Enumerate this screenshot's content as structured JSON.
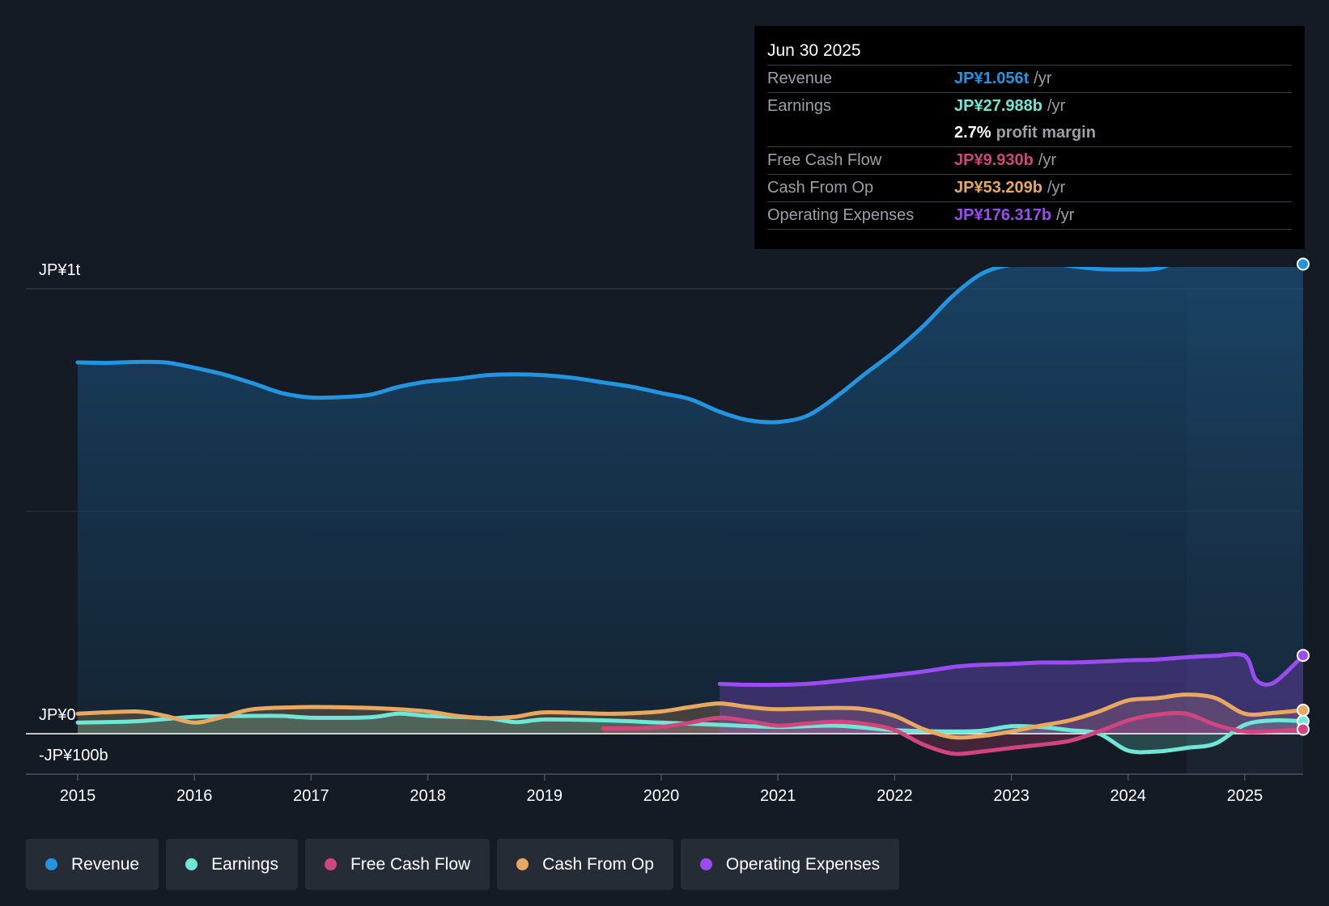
{
  "tooltip": {
    "date": "Jun 30 2025",
    "rows": {
      "revenue": {
        "label": "Revenue",
        "value": "JP¥1.056t",
        "unit": "/yr",
        "color": "#2394df"
      },
      "earnings": {
        "label": "Earnings",
        "value": "JP¥27.988b",
        "unit": "/yr",
        "color": "#6ee7d7"
      },
      "margin": {
        "value": "2.7%",
        "text": "profit margin"
      },
      "fcf": {
        "label": "Free Cash Flow",
        "value": "JP¥9.930b",
        "unit": "/yr",
        "color": "#d1457e"
      },
      "cfo": {
        "label": "Cash From Op",
        "value": "JP¥53.209b",
        "unit": "/yr",
        "color": "#e8a860"
      },
      "opex": {
        "label": "Operating Expenses",
        "value": "JP¥176.317b",
        "unit": "/yr",
        "color": "#9b4cf0"
      }
    }
  },
  "legend": [
    {
      "label": "Revenue",
      "color": "#2394df"
    },
    {
      "label": "Earnings",
      "color": "#6ee7d7"
    },
    {
      "label": "Free Cash Flow",
      "color": "#d1457e"
    },
    {
      "label": "Cash From Op",
      "color": "#e8a860"
    },
    {
      "label": "Operating Expenses",
      "color": "#9b4cf0"
    }
  ],
  "chart_data": {
    "type": "area",
    "title": "",
    "xlabel": "",
    "ylabel": "",
    "unit": "JP¥ billions",
    "y_axis_labels": {
      "top": "JP¥1t",
      "zero": "JP¥0",
      "bottom": "-JP¥100b"
    },
    "ylim": [
      -100,
      1100
    ],
    "xlim": [
      2015.0,
      2025.5
    ],
    "x_ticks": [
      "2015",
      "2016",
      "2017",
      "2018",
      "2019",
      "2020",
      "2021",
      "2022",
      "2023",
      "2024",
      "2025"
    ],
    "highlight_from": 2024.5,
    "series": [
      {
        "name": "Revenue",
        "color": "#2394df",
        "filled": true,
        "x": [
          2015.0,
          2015.25,
          2015.5,
          2015.75,
          2016.0,
          2016.25,
          2016.5,
          2016.75,
          2017.0,
          2017.25,
          2017.5,
          2017.75,
          2018.0,
          2018.25,
          2018.5,
          2018.75,
          2019.0,
          2019.25,
          2019.5,
          2019.75,
          2020.0,
          2020.25,
          2020.5,
          2020.75,
          2021.0,
          2021.25,
          2021.5,
          2021.75,
          2022.0,
          2022.25,
          2022.5,
          2022.75,
          2023.0,
          2023.25,
          2023.5,
          2023.75,
          2024.0,
          2024.25,
          2024.5,
          2024.75,
          2025.0,
          2025.25,
          2025.5
        ],
        "y": [
          835,
          834,
          836,
          835,
          823,
          808,
          788,
          766,
          756,
          757,
          762,
          780,
          792,
          798,
          806,
          808,
          806,
          800,
          790,
          780,
          766,
          752,
          724,
          705,
          701,
          715,
          758,
          810,
          860,
          918,
          985,
          1035,
          1055,
          1060,
          1052,
          1045,
          1044,
          1046,
          1067,
          1070,
          1074,
          1080,
          1056
        ]
      },
      {
        "name": "Earnings",
        "color": "#6ee7d7",
        "filled": true,
        "x": [
          2015.0,
          2015.5,
          2016.0,
          2016.5,
          2016.75,
          2017.0,
          2017.5,
          2017.75,
          2018.0,
          2018.5,
          2018.75,
          2019.0,
          2019.5,
          2020.0,
          2020.5,
          2021.0,
          2021.5,
          2022.0,
          2022.5,
          2022.75,
          2023.0,
          2023.25,
          2023.5,
          2023.75,
          2024.0,
          2024.25,
          2024.5,
          2024.75,
          2025.0,
          2025.25,
          2025.5
        ],
        "y": [
          25,
          28,
          38,
          40,
          40,
          36,
          37,
          45,
          40,
          35,
          26,
          32,
          30,
          25,
          20,
          15,
          18,
          8,
          5,
          7,
          17,
          15,
          8,
          0,
          -38,
          -40,
          -32,
          -22,
          20,
          30,
          28
        ]
      },
      {
        "name": "Free Cash Flow",
        "color": "#d1457e",
        "filled": true,
        "x": [
          2019.5,
          2019.75,
          2020.0,
          2020.25,
          2020.5,
          2020.75,
          2021.0,
          2021.25,
          2021.5,
          2021.75,
          2022.0,
          2022.25,
          2022.5,
          2022.75,
          2023.0,
          2023.25,
          2023.5,
          2023.75,
          2024.0,
          2024.25,
          2024.5,
          2024.75,
          2025.0,
          2025.25,
          2025.5
        ],
        "y": [
          12,
          12,
          15,
          25,
          36,
          28,
          18,
          23,
          27,
          22,
          8,
          -25,
          -45,
          -40,
          -32,
          -25,
          -16,
          5,
          30,
          43,
          45,
          20,
          5,
          6,
          10
        ]
      },
      {
        "name": "Cash From Op",
        "color": "#e8a860",
        "filled": true,
        "x": [
          2015.0,
          2015.5,
          2015.75,
          2016.0,
          2016.25,
          2016.5,
          2017.0,
          2017.5,
          2017.75,
          2018.0,
          2018.25,
          2018.5,
          2018.75,
          2019.0,
          2019.5,
          2019.75,
          2020.0,
          2020.25,
          2020.5,
          2020.75,
          2021.0,
          2021.5,
          2021.75,
          2022.0,
          2022.25,
          2022.5,
          2022.75,
          2023.0,
          2023.25,
          2023.5,
          2023.75,
          2024.0,
          2024.25,
          2024.5,
          2024.75,
          2025.0,
          2025.25,
          2025.5
        ],
        "y": [
          45,
          50,
          40,
          25,
          38,
          55,
          60,
          58,
          55,
          50,
          40,
          35,
          38,
          48,
          45,
          46,
          50,
          60,
          68,
          60,
          55,
          58,
          55,
          40,
          10,
          -8,
          -5,
          5,
          18,
          30,
          50,
          75,
          80,
          88,
          80,
          45,
          47,
          53
        ]
      },
      {
        "name": "Operating Expenses",
        "color": "#9b4cf0",
        "filled": true,
        "x": [
          2020.5,
          2020.75,
          2021.0,
          2021.25,
          2021.5,
          2021.75,
          2022.0,
          2022.25,
          2022.5,
          2022.75,
          2023.0,
          2023.25,
          2023.5,
          2023.75,
          2024.0,
          2024.25,
          2024.5,
          2024.75,
          2025.0,
          2025.1,
          2025.25,
          2025.5
        ],
        "y": [
          112,
          110,
          110,
          112,
          118,
          125,
          132,
          140,
          150,
          155,
          157,
          160,
          160,
          162,
          165,
          167,
          172,
          175,
          175,
          120,
          115,
          176
        ]
      }
    ]
  }
}
